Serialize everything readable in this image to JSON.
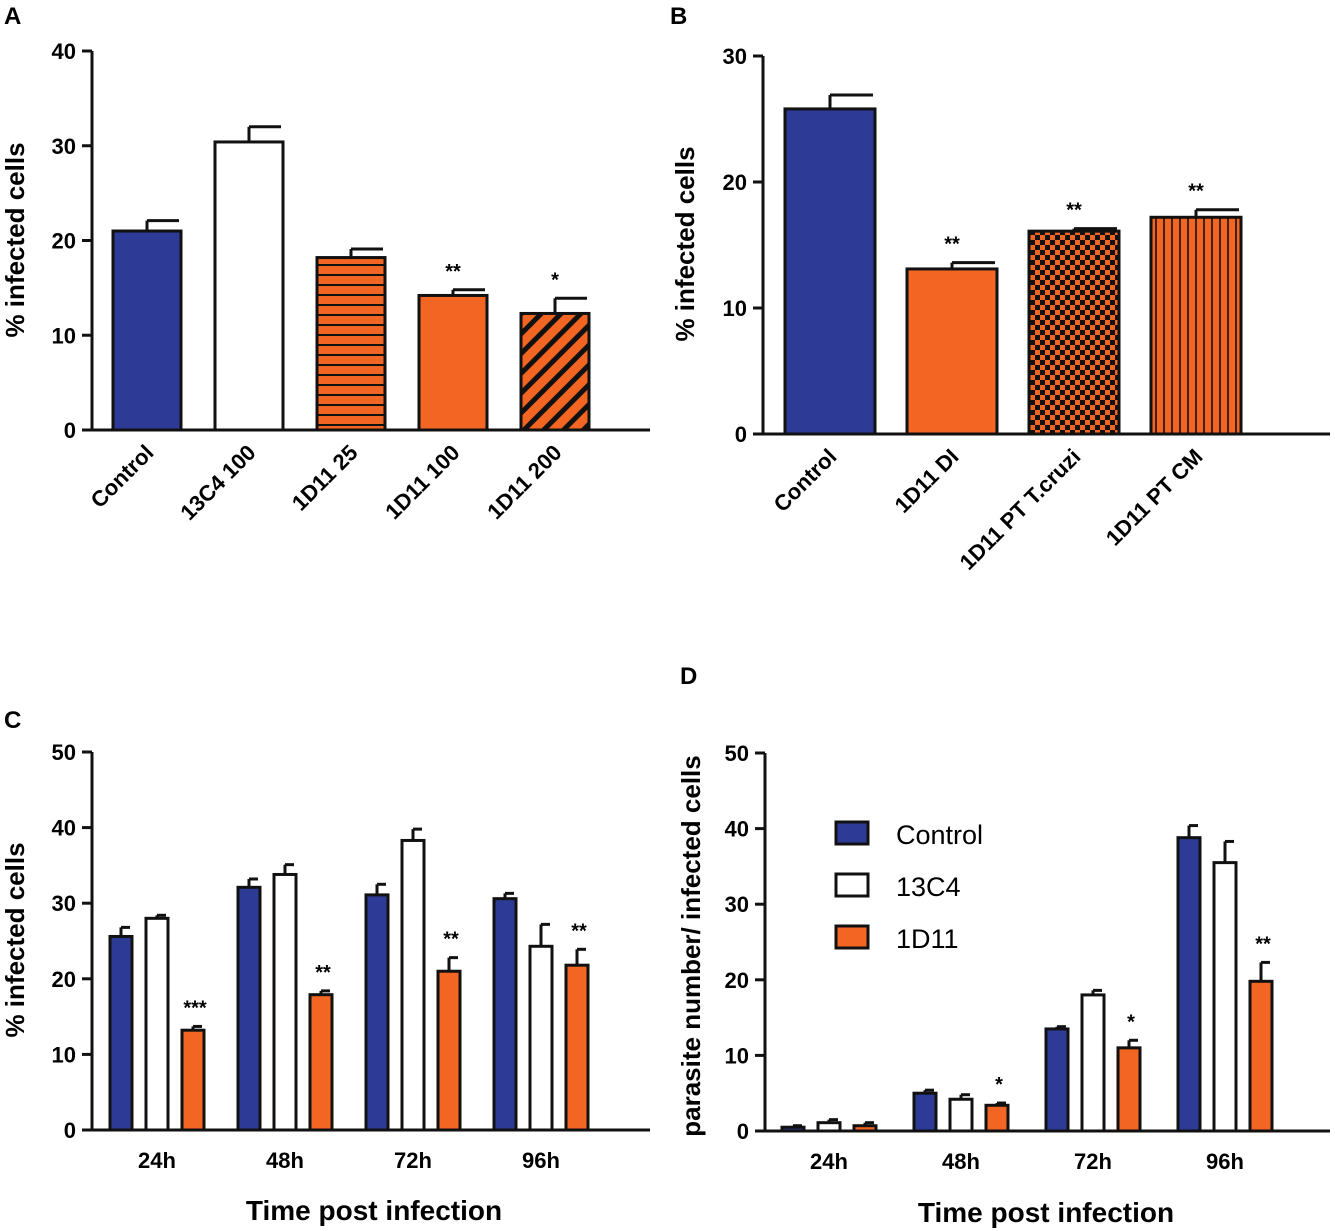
{
  "colors": {
    "control": "#2e3b96",
    "white": "#ffffff",
    "orange": "#f26522",
    "outline": "#111111"
  },
  "chart_data": [
    {
      "panel": "A",
      "type": "bar",
      "ylabel": "% infected cells",
      "ylim": [
        0,
        40
      ],
      "yticks": [
        0,
        10,
        20,
        30,
        40
      ],
      "categories": [
        "Control",
        "13C4 100",
        "1D11 25",
        "1D11 100",
        "1D11 200"
      ],
      "values": [
        21,
        30.4,
        18.2,
        14.2,
        12.3
      ],
      "errors": [
        1.1,
        1.6,
        0.9,
        0.6,
        1.6
      ],
      "fills": [
        "control",
        "white",
        "orange-hlines",
        "orange",
        "orange-diagonal"
      ],
      "annotations": [
        "",
        "",
        "",
        "**",
        "*"
      ]
    },
    {
      "panel": "B",
      "type": "bar",
      "ylabel": "% infected cells",
      "ylim": [
        0,
        30
      ],
      "yticks": [
        0,
        10,
        20,
        30
      ],
      "categories": [
        "Control",
        "1D11 DI",
        "1D11 PT T.cruzi",
        "1D11 PT CM"
      ],
      "values": [
        25.8,
        13.1,
        16.1,
        17.2
      ],
      "errors": [
        1.1,
        0.5,
        0.2,
        0.6
      ],
      "fills": [
        "control",
        "orange",
        "orange-checker",
        "orange-vlines"
      ],
      "annotations": [
        "",
        "**",
        "**",
        "**"
      ]
    },
    {
      "panel": "C",
      "type": "bar",
      "ylabel": "% infected cells",
      "xlabel": "Time post infection",
      "ylim": [
        0,
        50
      ],
      "yticks": [
        0,
        10,
        20,
        30,
        40,
        50
      ],
      "categories": [
        "24h",
        "48h",
        "72h",
        "96h"
      ],
      "series": [
        {
          "name": "Control",
          "fill": "control",
          "values": [
            25.6,
            32.1,
            31.1,
            30.6
          ],
          "errors": [
            1.2,
            1.1,
            1.4,
            0.7
          ]
        },
        {
          "name": "13C4",
          "fill": "white",
          "values": [
            28,
            33.8,
            38.3,
            24.3
          ],
          "errors": [
            0.4,
            1.3,
            1.5,
            2.9
          ]
        },
        {
          "name": "1D11",
          "fill": "orange",
          "values": [
            13.2,
            17.9,
            21,
            21.8
          ],
          "errors": [
            0.5,
            0.5,
            1.8,
            2.1
          ]
        }
      ],
      "annotations": [
        "***",
        "**",
        "**",
        "**"
      ]
    },
    {
      "panel": "D",
      "type": "bar",
      "ylabel": "parasite number/ infected cells",
      "xlabel": "Time post infection",
      "ylim": [
        0,
        50
      ],
      "yticks": [
        0,
        10,
        20,
        30,
        40,
        50
      ],
      "categories": [
        "24h",
        "48h",
        "72h",
        "96h"
      ],
      "series": [
        {
          "name": "Control",
          "fill": "control",
          "values": [
            0.5,
            5,
            13.5,
            38.8
          ],
          "errors": [
            0.2,
            0.4,
            0.3,
            1.6
          ]
        },
        {
          "name": "13C4",
          "fill": "white",
          "values": [
            1.1,
            4.2,
            18,
            35.5
          ],
          "errors": [
            0.4,
            0.6,
            0.6,
            2.8
          ]
        },
        {
          "name": "1D11",
          "fill": "orange",
          "values": [
            0.7,
            3.4,
            11,
            19.8
          ],
          "errors": [
            0.4,
            0.3,
            1,
            2.5
          ]
        }
      ],
      "annotations": [
        "",
        "*",
        "*",
        "**"
      ],
      "legend": {
        "placement": "upper-left",
        "entries": [
          {
            "label": "Control",
            "fill": "control"
          },
          {
            "label": "13C4",
            "fill": "white"
          },
          {
            "label": "1D11",
            "fill": "orange"
          }
        ]
      }
    }
  ]
}
